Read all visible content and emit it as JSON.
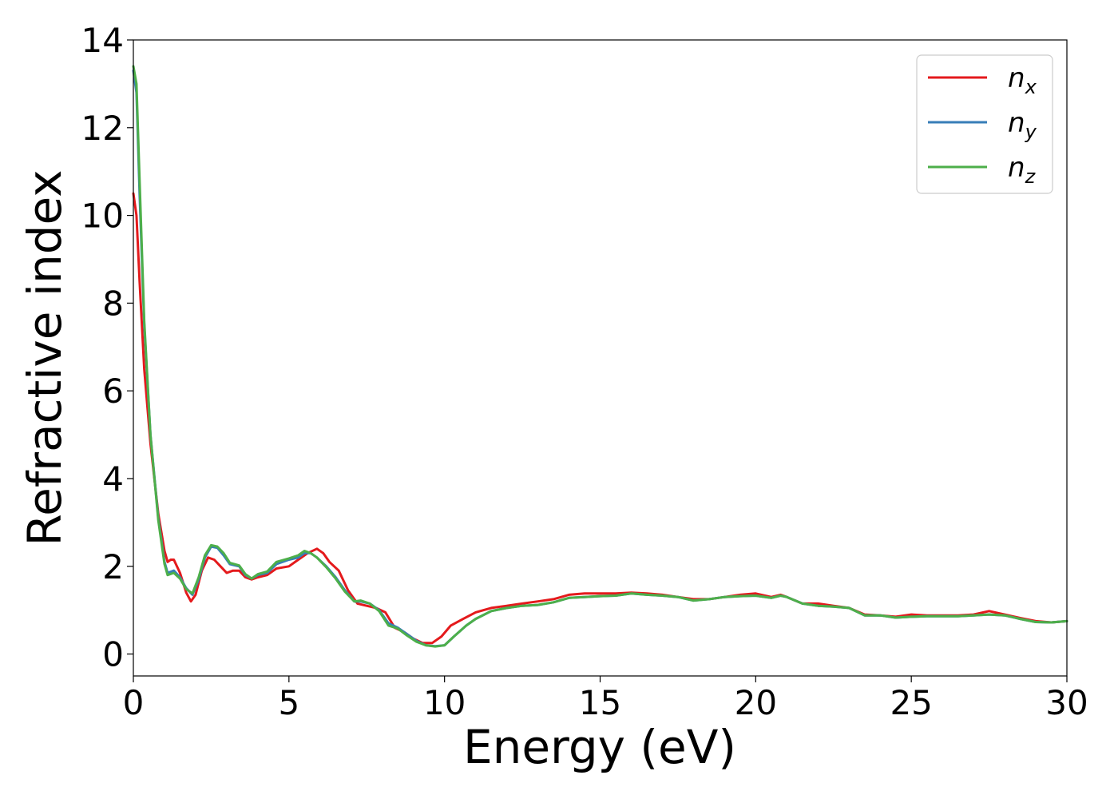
{
  "chart_data": {
    "type": "line",
    "title": "",
    "xlabel": "Energy (eV)",
    "ylabel": "Refractive index",
    "xlim": [
      0,
      30
    ],
    "ylim": [
      -0.5,
      14
    ],
    "xticks": [
      "0",
      "5",
      "10",
      "15",
      "20",
      "25",
      "30"
    ],
    "yticks": [
      "0",
      "2",
      "4",
      "6",
      "8",
      "10",
      "12",
      "14"
    ],
    "grid": false,
    "legend_position": "top-right",
    "series": [
      {
        "name": "n_x",
        "label_base": "n",
        "label_sub": "x",
        "color": "#e41a1c",
        "points": [
          [
            0,
            10.5
          ],
          [
            0.1,
            10.0
          ],
          [
            0.2,
            8.5
          ],
          [
            0.35,
            6.5
          ],
          [
            0.55,
            4.8
          ],
          [
            0.8,
            3.2
          ],
          [
            1.0,
            2.35
          ],
          [
            1.1,
            2.1
          ],
          [
            1.2,
            2.15
          ],
          [
            1.3,
            2.15
          ],
          [
            1.5,
            1.85
          ],
          [
            1.7,
            1.4
          ],
          [
            1.85,
            1.2
          ],
          [
            2.0,
            1.35
          ],
          [
            2.2,
            1.9
          ],
          [
            2.4,
            2.2
          ],
          [
            2.6,
            2.15
          ],
          [
            2.8,
            2.0
          ],
          [
            3.0,
            1.85
          ],
          [
            3.2,
            1.9
          ],
          [
            3.4,
            1.9
          ],
          [
            3.6,
            1.75
          ],
          [
            3.8,
            1.7
          ],
          [
            4.0,
            1.75
          ],
          [
            4.3,
            1.8
          ],
          [
            4.6,
            1.95
          ],
          [
            5.0,
            2.0
          ],
          [
            5.3,
            2.15
          ],
          [
            5.6,
            2.3
          ],
          [
            5.9,
            2.4
          ],
          [
            6.1,
            2.3
          ],
          [
            6.3,
            2.1
          ],
          [
            6.6,
            1.9
          ],
          [
            6.9,
            1.45
          ],
          [
            7.2,
            1.15
          ],
          [
            7.5,
            1.1
          ],
          [
            7.8,
            1.05
          ],
          [
            8.1,
            0.95
          ],
          [
            8.4,
            0.6
          ],
          [
            8.7,
            0.5
          ],
          [
            9.0,
            0.35
          ],
          [
            9.3,
            0.25
          ],
          [
            9.6,
            0.25
          ],
          [
            9.9,
            0.4
          ],
          [
            10.2,
            0.65
          ],
          [
            10.6,
            0.8
          ],
          [
            11.0,
            0.95
          ],
          [
            11.5,
            1.05
          ],
          [
            12.0,
            1.1
          ],
          [
            12.5,
            1.15
          ],
          [
            13.0,
            1.2
          ],
          [
            13.5,
            1.25
          ],
          [
            14.0,
            1.35
          ],
          [
            14.5,
            1.38
          ],
          [
            15.0,
            1.38
          ],
          [
            15.5,
            1.38
          ],
          [
            16.0,
            1.4
          ],
          [
            16.5,
            1.38
          ],
          [
            17.0,
            1.35
          ],
          [
            17.5,
            1.3
          ],
          [
            18.0,
            1.25
          ],
          [
            18.5,
            1.25
          ],
          [
            19.0,
            1.3
          ],
          [
            19.5,
            1.35
          ],
          [
            20.0,
            1.38
          ],
          [
            20.5,
            1.3
          ],
          [
            20.8,
            1.35
          ],
          [
            21.0,
            1.3
          ],
          [
            21.5,
            1.15
          ],
          [
            22.0,
            1.15
          ],
          [
            22.5,
            1.1
          ],
          [
            23.0,
            1.05
          ],
          [
            23.5,
            0.9
          ],
          [
            24.0,
            0.88
          ],
          [
            24.5,
            0.85
          ],
          [
            25.0,
            0.9
          ],
          [
            25.5,
            0.88
          ],
          [
            26.0,
            0.88
          ],
          [
            26.5,
            0.88
          ],
          [
            27.0,
            0.9
          ],
          [
            27.5,
            0.98
          ],
          [
            28.0,
            0.9
          ],
          [
            28.5,
            0.82
          ],
          [
            29.0,
            0.75
          ],
          [
            29.5,
            0.72
          ],
          [
            30.0,
            0.75
          ]
        ]
      },
      {
        "name": "n_y",
        "label_base": "n",
        "label_sub": "y",
        "color": "#377eb8",
        "points": [
          [
            0,
            13.3
          ],
          [
            0.1,
            12.8
          ],
          [
            0.2,
            10.5
          ],
          [
            0.35,
            7.5
          ],
          [
            0.55,
            5.0
          ],
          [
            0.8,
            3.1
          ],
          [
            1.0,
            2.1
          ],
          [
            1.1,
            1.85
          ],
          [
            1.3,
            1.9
          ],
          [
            1.5,
            1.75
          ],
          [
            1.7,
            1.5
          ],
          [
            1.9,
            1.35
          ],
          [
            2.1,
            1.7
          ],
          [
            2.3,
            2.2
          ],
          [
            2.5,
            2.45
          ],
          [
            2.7,
            2.42
          ],
          [
            2.9,
            2.25
          ],
          [
            3.1,
            2.05
          ],
          [
            3.4,
            2.0
          ],
          [
            3.6,
            1.8
          ],
          [
            3.8,
            1.72
          ],
          [
            4.0,
            1.8
          ],
          [
            4.3,
            1.85
          ],
          [
            4.6,
            2.05
          ],
          [
            5.0,
            2.15
          ],
          [
            5.3,
            2.2
          ],
          [
            5.5,
            2.3
          ],
          [
            5.7,
            2.3
          ],
          [
            5.9,
            2.2
          ],
          [
            6.2,
            2.0
          ],
          [
            6.5,
            1.75
          ],
          [
            6.8,
            1.45
          ],
          [
            7.1,
            1.2
          ],
          [
            7.3,
            1.2
          ],
          [
            7.6,
            1.15
          ],
          [
            7.9,
            1.0
          ],
          [
            8.2,
            0.7
          ],
          [
            8.5,
            0.6
          ],
          [
            8.8,
            0.45
          ],
          [
            9.1,
            0.3
          ],
          [
            9.4,
            0.2
          ],
          [
            9.7,
            0.18
          ],
          [
            10.0,
            0.2
          ],
          [
            10.3,
            0.4
          ],
          [
            10.7,
            0.65
          ],
          [
            11.0,
            0.8
          ],
          [
            11.5,
            0.98
          ],
          [
            12.0,
            1.05
          ],
          [
            12.5,
            1.1
          ],
          [
            13.0,
            1.12
          ],
          [
            13.5,
            1.18
          ],
          [
            14.0,
            1.28
          ],
          [
            14.5,
            1.3
          ],
          [
            15.0,
            1.32
          ],
          [
            15.5,
            1.33
          ],
          [
            16.0,
            1.38
          ],
          [
            16.5,
            1.35
          ],
          [
            17.0,
            1.33
          ],
          [
            17.5,
            1.3
          ],
          [
            18.0,
            1.22
          ],
          [
            18.5,
            1.25
          ],
          [
            19.0,
            1.3
          ],
          [
            19.5,
            1.32
          ],
          [
            20.0,
            1.33
          ],
          [
            20.5,
            1.28
          ],
          [
            20.8,
            1.33
          ],
          [
            21.0,
            1.3
          ],
          [
            21.5,
            1.15
          ],
          [
            22.0,
            1.1
          ],
          [
            22.5,
            1.08
          ],
          [
            23.0,
            1.05
          ],
          [
            23.5,
            0.88
          ],
          [
            24.0,
            0.88
          ],
          [
            24.5,
            0.83
          ],
          [
            25.0,
            0.85
          ],
          [
            25.5,
            0.86
          ],
          [
            26.0,
            0.86
          ],
          [
            26.5,
            0.86
          ],
          [
            27.0,
            0.88
          ],
          [
            27.5,
            0.9
          ],
          [
            28.0,
            0.88
          ],
          [
            28.5,
            0.8
          ],
          [
            29.0,
            0.73
          ],
          [
            29.5,
            0.72
          ],
          [
            30.0,
            0.75
          ]
        ]
      },
      {
        "name": "n_z",
        "label_base": "n",
        "label_sub": "z",
        "color": "#4daf4a",
        "points": [
          [
            0,
            13.4
          ],
          [
            0.1,
            13.0
          ],
          [
            0.2,
            10.8
          ],
          [
            0.35,
            7.6
          ],
          [
            0.55,
            5.0
          ],
          [
            0.8,
            3.05
          ],
          [
            1.0,
            2.05
          ],
          [
            1.1,
            1.8
          ],
          [
            1.3,
            1.85
          ],
          [
            1.5,
            1.72
          ],
          [
            1.7,
            1.48
          ],
          [
            1.9,
            1.38
          ],
          [
            2.1,
            1.75
          ],
          [
            2.3,
            2.25
          ],
          [
            2.5,
            2.48
          ],
          [
            2.7,
            2.45
          ],
          [
            2.9,
            2.3
          ],
          [
            3.1,
            2.08
          ],
          [
            3.4,
            2.02
          ],
          [
            3.6,
            1.82
          ],
          [
            3.8,
            1.72
          ],
          [
            4.0,
            1.82
          ],
          [
            4.3,
            1.88
          ],
          [
            4.6,
            2.1
          ],
          [
            5.0,
            2.18
          ],
          [
            5.3,
            2.25
          ],
          [
            5.5,
            2.35
          ],
          [
            5.7,
            2.3
          ],
          [
            5.9,
            2.2
          ],
          [
            6.2,
            1.98
          ],
          [
            6.5,
            1.72
          ],
          [
            6.8,
            1.42
          ],
          [
            7.1,
            1.2
          ],
          [
            7.3,
            1.22
          ],
          [
            7.6,
            1.15
          ],
          [
            7.9,
            0.98
          ],
          [
            8.2,
            0.65
          ],
          [
            8.5,
            0.58
          ],
          [
            8.8,
            0.42
          ],
          [
            9.1,
            0.28
          ],
          [
            9.4,
            0.2
          ],
          [
            9.7,
            0.17
          ],
          [
            10.0,
            0.2
          ],
          [
            10.3,
            0.4
          ],
          [
            10.7,
            0.65
          ],
          [
            11.0,
            0.8
          ],
          [
            11.5,
            0.98
          ],
          [
            12.0,
            1.05
          ],
          [
            12.5,
            1.1
          ],
          [
            13.0,
            1.12
          ],
          [
            13.5,
            1.18
          ],
          [
            14.0,
            1.28
          ],
          [
            14.5,
            1.3
          ],
          [
            15.0,
            1.32
          ],
          [
            15.5,
            1.33
          ],
          [
            16.0,
            1.38
          ],
          [
            16.5,
            1.35
          ],
          [
            17.0,
            1.33
          ],
          [
            17.5,
            1.3
          ],
          [
            18.0,
            1.22
          ],
          [
            18.5,
            1.25
          ],
          [
            19.0,
            1.3
          ],
          [
            19.5,
            1.32
          ],
          [
            20.0,
            1.33
          ],
          [
            20.5,
            1.28
          ],
          [
            20.8,
            1.33
          ],
          [
            21.0,
            1.3
          ],
          [
            21.5,
            1.15
          ],
          [
            22.0,
            1.1
          ],
          [
            22.5,
            1.08
          ],
          [
            23.0,
            1.05
          ],
          [
            23.5,
            0.88
          ],
          [
            24.0,
            0.88
          ],
          [
            24.5,
            0.83
          ],
          [
            25.0,
            0.85
          ],
          [
            25.5,
            0.86
          ],
          [
            26.0,
            0.86
          ],
          [
            26.5,
            0.86
          ],
          [
            27.0,
            0.88
          ],
          [
            27.5,
            0.9
          ],
          [
            28.0,
            0.88
          ],
          [
            28.5,
            0.8
          ],
          [
            29.0,
            0.73
          ],
          [
            29.5,
            0.72
          ],
          [
            30.0,
            0.75
          ]
        ]
      }
    ]
  }
}
